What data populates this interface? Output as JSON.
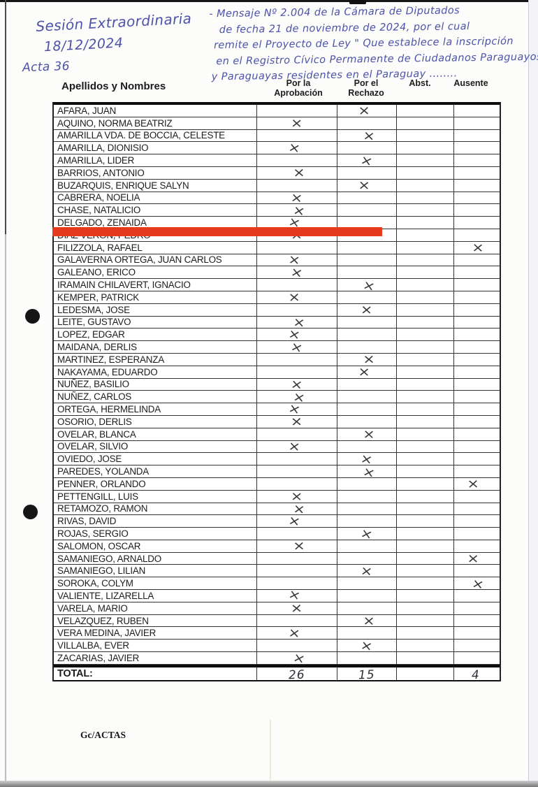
{
  "annotations": {
    "session_line1": "Sesión Extraordinaria",
    "session_line2": "18/12/2024",
    "acta": "Acta 36",
    "note_lines": [
      "- Mensaje Nº 2.004 de la Cámara de Diputados",
      "de fecha 21 de noviembre de 2024, por el cual",
      "remite el Proyecto de Ley \" Que establece la inscripción",
      "en el Registro Cívico Permanente de Ciudadanos Paraguayos",
      "y Paraguayas residentes en el Paraguay ........"
    ]
  },
  "table": {
    "name_header": "Apellidos y Nombres",
    "col_headers": [
      "Por la\nAprobación",
      "Por el\nRechazo",
      "Abst.",
      "Ausente"
    ],
    "vote_keys": [
      "aprobacion",
      "rechazo",
      "abst",
      "ausente"
    ],
    "rows": [
      {
        "name": "AFARA, JUAN",
        "vote": "rechazo"
      },
      {
        "name": "AQUINO, NORMA BEATRIZ",
        "vote": "aprobacion"
      },
      {
        "name": "AMARILLA VDA. DE BOCCIA, CELESTE",
        "vote": "rechazo"
      },
      {
        "name": "AMARILLA, DIONISIO",
        "vote": "aprobacion"
      },
      {
        "name": "AMARILLA, LIDER",
        "vote": "rechazo"
      },
      {
        "name": "BARRIOS, ANTONIO",
        "vote": "aprobacion"
      },
      {
        "name": "BUZARQUIS, ENRIQUE SALYN",
        "vote": "rechazo"
      },
      {
        "name": "CABRERA, NOELIA",
        "vote": "aprobacion"
      },
      {
        "name": "CHASE, NATALICIO",
        "vote": "aprobacion"
      },
      {
        "name": "DELGADO, ZENAIDA",
        "vote": "aprobacion"
      },
      {
        "name": "DIAZ VERON, PEDRO",
        "vote": "aprobacion",
        "redacted": true
      },
      {
        "name": "FILIZZOLA, RAFAEL",
        "vote": "ausente"
      },
      {
        "name": "GALAVERNA ORTEGA, JUAN CARLOS",
        "vote": "aprobacion"
      },
      {
        "name": "GALEANO, ERICO",
        "vote": "aprobacion"
      },
      {
        "name": "IRAMAIN CHILAVERT, IGNACIO",
        "vote": "rechazo"
      },
      {
        "name": "KEMPER, PATRICK",
        "vote": "aprobacion"
      },
      {
        "name": "LEDESMA, JOSE",
        "vote": "rechazo"
      },
      {
        "name": "LEITE, GUSTAVO",
        "vote": "aprobacion"
      },
      {
        "name": "LOPEZ, EDGAR",
        "vote": "aprobacion"
      },
      {
        "name": "MAIDANA, DERLIS",
        "vote": "aprobacion"
      },
      {
        "name": "MARTINEZ, ESPERANZA",
        "vote": "rechazo"
      },
      {
        "name": "NAKAYAMA, EDUARDO",
        "vote": "rechazo"
      },
      {
        "name": "NUÑEZ, BASILIO",
        "vote": "aprobacion"
      },
      {
        "name": "NUÑEZ, CARLOS",
        "vote": "aprobacion"
      },
      {
        "name": "ORTEGA, HERMELINDA",
        "vote": "aprobacion"
      },
      {
        "name": "OSORIO, DERLIS",
        "vote": "aprobacion"
      },
      {
        "name": "OVELAR, BLANCA",
        "vote": "rechazo"
      },
      {
        "name": "OVELAR, SILVIO",
        "vote": "aprobacion"
      },
      {
        "name": "OVIEDO, JOSE",
        "vote": "rechazo"
      },
      {
        "name": "PAREDES, YOLANDA",
        "vote": "rechazo"
      },
      {
        "name": "PENNER, ORLANDO",
        "vote": "ausente"
      },
      {
        "name": "PETTENGILL, LUIS",
        "vote": "aprobacion"
      },
      {
        "name": "RETAMOZO, RAMON",
        "vote": "aprobacion"
      },
      {
        "name": "RIVAS, DAVID",
        "vote": "aprobacion"
      },
      {
        "name": "ROJAS, SERGIO",
        "vote": "rechazo"
      },
      {
        "name": "SALOMON, OSCAR",
        "vote": "aprobacion"
      },
      {
        "name": "SAMANIEGO, ARNALDO",
        "vote": "ausente"
      },
      {
        "name": "SAMANIEGO, LILIAN",
        "vote": "rechazo"
      },
      {
        "name": "SOROKA, COLYM",
        "vote": "ausente"
      },
      {
        "name": "VALIENTE, LIZARELLA",
        "vote": "aprobacion"
      },
      {
        "name": "VARELA, MARIO",
        "vote": "aprobacion"
      },
      {
        "name": "VELAZQUEZ, RUBEN",
        "vote": "rechazo"
      },
      {
        "name": "VERA MEDINA, JAVIER",
        "vote": "aprobacion"
      },
      {
        "name": "VILLALBA, EVER",
        "vote": "rechazo"
      },
      {
        "name": "ZACARIAS, JAVIER",
        "vote": "aprobacion"
      }
    ],
    "total_label": "TOTAL:",
    "totals": {
      "aprobacion": "26",
      "rechazo": "15",
      "abst": "",
      "ausente": "4"
    }
  },
  "footer": {
    "code": "Gc/ACTAS"
  },
  "marks": {
    "x_glyph": "×"
  },
  "colors": {
    "ink_blue": "#4c52a8",
    "redaction": "#e63a1c"
  }
}
